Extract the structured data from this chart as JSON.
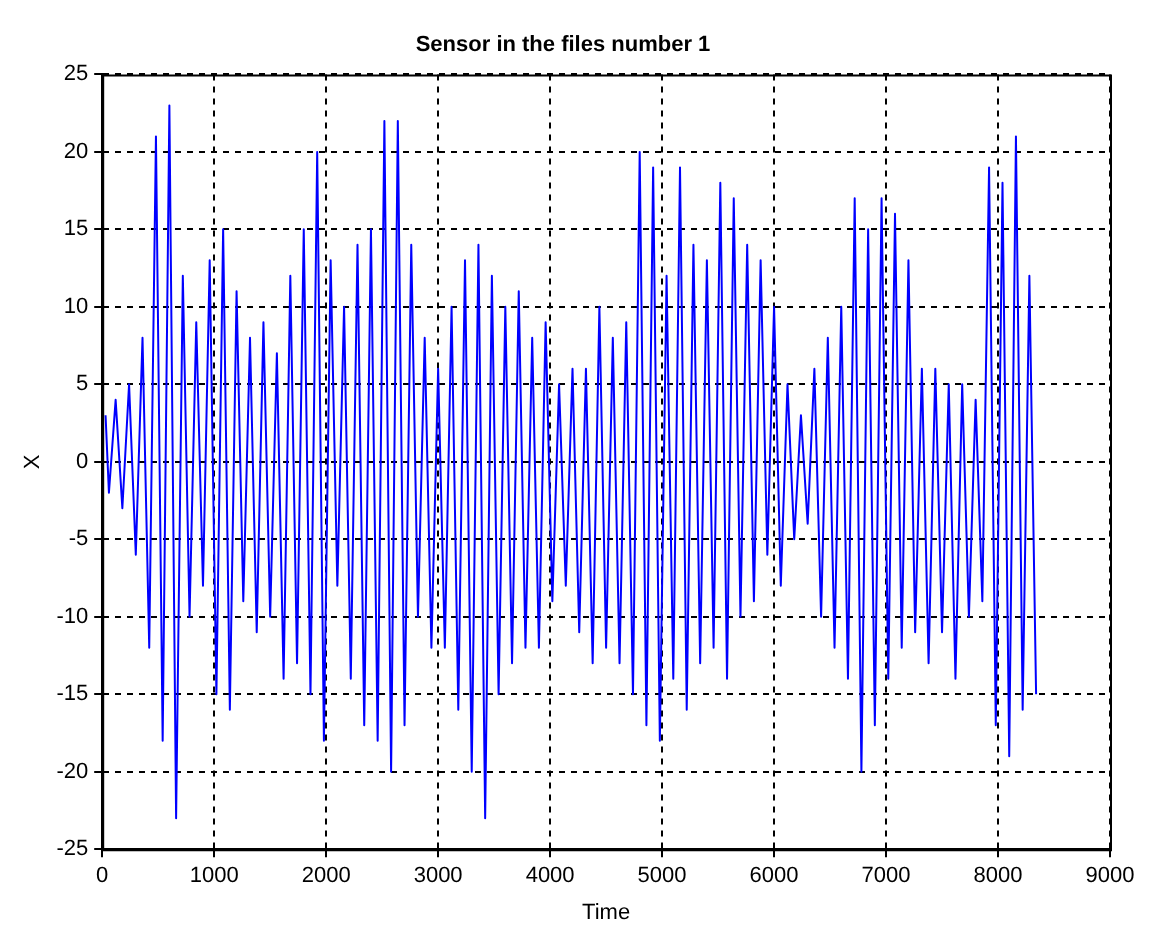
{
  "chart_data": {
    "type": "line",
    "title": "Sensor in the files number 1",
    "xlabel": "Time",
    "ylabel": "X",
    "xlim": [
      0,
      9000
    ],
    "xticks": [
      0,
      1000,
      2000,
      3000,
      4000,
      5000,
      6000,
      7000,
      8000,
      9000
    ],
    "ylim": [
      -25,
      25
    ],
    "yticks": [
      -25,
      -20,
      -15,
      -10,
      -5,
      0,
      5,
      10,
      15,
      20,
      25
    ],
    "grid": true,
    "legend": false,
    "marker": "none",
    "line_style": "solid",
    "series": [
      {
        "color": "#0000ff",
        "x": [
          30,
          60,
          120,
          180,
          240,
          300,
          360,
          420,
          480,
          540,
          600,
          660,
          720,
          780,
          840,
          900,
          960,
          1020,
          1080,
          1140,
          1200,
          1260,
          1320,
          1380,
          1440,
          1500,
          1560,
          1620,
          1680,
          1740,
          1800,
          1860,
          1920,
          1980,
          2040,
          2100,
          2160,
          2220,
          2280,
          2340,
          2400,
          2460,
          2520,
          2580,
          2640,
          2700,
          2760,
          2820,
          2880,
          2940,
          3000,
          3060,
          3120,
          3180,
          3240,
          3300,
          3360,
          3420,
          3480,
          3540,
          3600,
          3660,
          3720,
          3780,
          3840,
          3900,
          3960,
          4020,
          4080,
          4140,
          4200,
          4260,
          4320,
          4380,
          4440,
          4500,
          4560,
          4620,
          4680,
          4740,
          4800,
          4860,
          4920,
          4980,
          5040,
          5100,
          5160,
          5220,
          5280,
          5340,
          5400,
          5460,
          5520,
          5580,
          5640,
          5700,
          5760,
          5820,
          5880,
          5940,
          6000,
          6060,
          6120,
          6180,
          6240,
          6300,
          6360,
          6420,
          6480,
          6540,
          6600,
          6660,
          6720,
          6780,
          6840,
          6900,
          6960,
          7020,
          7080,
          7140,
          7200,
          7260,
          7320,
          7380,
          7440,
          7500,
          7560,
          7620,
          7680,
          7740,
          7800,
          7860,
          7920,
          7980,
          8040,
          8100,
          8160,
          8220,
          8280,
          8340
        ],
        "values": [
          3,
          -2,
          4,
          -3,
          5,
          -6,
          8,
          -12,
          21,
          -18,
          23,
          -23,
          12,
          -10,
          9,
          -8,
          13,
          -15,
          15,
          -16,
          11,
          -9,
          8,
          -11,
          9,
          -10,
          7,
          -14,
          12,
          -13,
          15,
          -15,
          20,
          -18,
          13,
          -8,
          10,
          -14,
          14,
          -17,
          15,
          -18,
          22,
          -20,
          22,
          -17,
          14,
          -10,
          8,
          -12,
          6,
          -12,
          10,
          -16,
          13,
          -20,
          14,
          -23,
          12,
          -15,
          10,
          -13,
          11,
          -12,
          8,
          -12,
          9,
          -9,
          5,
          -8,
          6,
          -11,
          6,
          -13,
          10,
          -12,
          8,
          -13,
          9,
          -15,
          20,
          -17,
          19,
          -18,
          12,
          -14,
          19,
          -16,
          14,
          -13,
          13,
          -12,
          18,
          -14,
          17,
          -10,
          14,
          -9,
          13,
          -6,
          10,
          -8,
          5,
          -5,
          3,
          -4,
          6,
          -10,
          8,
          -12,
          10,
          -14,
          17,
          -20,
          15,
          -17,
          17,
          -14,
          16,
          -12,
          13,
          -11,
          6,
          -13,
          6,
          -11,
          5,
          -14,
          5,
          -10,
          4,
          -9,
          19,
          -17,
          18,
          -19,
          21,
          -16,
          12,
          -15
        ]
      }
    ]
  }
}
